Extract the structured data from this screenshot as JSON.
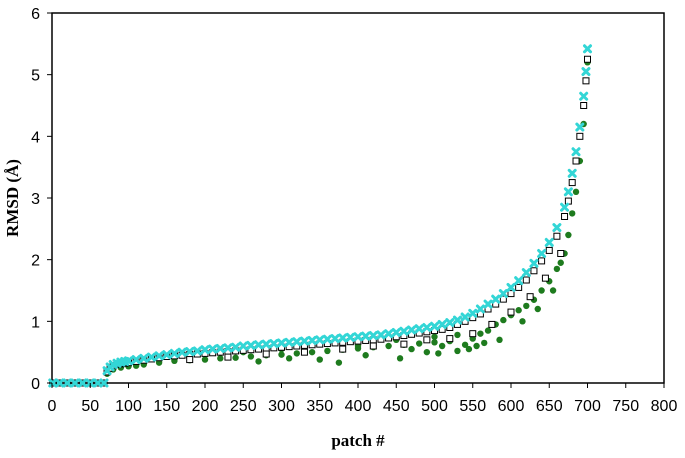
{
  "chart_data": {
    "type": "scatter",
    "title": "",
    "xlabel": "patch #",
    "ylabel": "RMSD (Å)",
    "xlim": [
      0,
      800
    ],
    "ylim": [
      0,
      6
    ],
    "xticks": [
      "0",
      "50",
      "100",
      "150",
      "200",
      "250",
      "300",
      "350",
      "400",
      "450",
      "500",
      "550",
      "600",
      "650",
      "700",
      "750",
      "800"
    ],
    "yticks": [
      "0",
      "1",
      "2",
      "3",
      "4",
      "5",
      "6"
    ],
    "grid": false,
    "legend": "none",
    "series": [
      {
        "marker": "square-open",
        "color": "#000000",
        "points": [
          [
            1,
            0
          ],
          [
            10,
            0
          ],
          [
            20,
            0
          ],
          [
            30,
            0
          ],
          [
            40,
            0
          ],
          [
            50,
            0
          ],
          [
            60,
            0
          ],
          [
            68,
            0
          ],
          [
            72,
            0.18
          ],
          [
            76,
            0.24
          ],
          [
            80,
            0.28
          ],
          [
            85,
            0.3
          ],
          [
            90,
            0.31
          ],
          [
            95,
            0.32
          ],
          [
            100,
            0.33
          ],
          [
            110,
            0.35
          ],
          [
            120,
            0.37
          ],
          [
            130,
            0.39
          ],
          [
            140,
            0.41
          ],
          [
            150,
            0.43
          ],
          [
            160,
            0.44
          ],
          [
            170,
            0.45
          ],
          [
            180,
            0.46
          ],
          [
            190,
            0.47
          ],
          [
            200,
            0.48
          ],
          [
            210,
            0.49
          ],
          [
            220,
            0.5
          ],
          [
            230,
            0.51
          ],
          [
            240,
            0.52
          ],
          [
            250,
            0.53
          ],
          [
            260,
            0.54
          ],
          [
            270,
            0.55
          ],
          [
            280,
            0.56
          ],
          [
            290,
            0.57
          ],
          [
            300,
            0.58
          ],
          [
            310,
            0.59
          ],
          [
            320,
            0.6
          ],
          [
            330,
            0.61
          ],
          [
            340,
            0.62
          ],
          [
            350,
            0.63
          ],
          [
            360,
            0.64
          ],
          [
            370,
            0.65
          ],
          [
            380,
            0.66
          ],
          [
            390,
            0.67
          ],
          [
            400,
            0.68
          ],
          [
            410,
            0.69
          ],
          [
            420,
            0.7
          ],
          [
            430,
            0.71
          ],
          [
            440,
            0.73
          ],
          [
            450,
            0.75
          ],
          [
            460,
            0.77
          ],
          [
            470,
            0.79
          ],
          [
            480,
            0.81
          ],
          [
            490,
            0.83
          ],
          [
            500,
            0.85
          ],
          [
            510,
            0.87
          ],
          [
            520,
            0.9
          ],
          [
            530,
            0.95
          ],
          [
            540,
            1.0
          ],
          [
            550,
            1.06
          ],
          [
            560,
            1.12
          ],
          [
            570,
            1.2
          ],
          [
            580,
            1.28
          ],
          [
            590,
            1.36
          ],
          [
            600,
            1.45
          ],
          [
            610,
            1.55
          ],
          [
            620,
            1.67
          ],
          [
            630,
            1.82
          ],
          [
            640,
            1.98
          ],
          [
            650,
            2.15
          ],
          [
            660,
            2.38
          ],
          [
            670,
            2.7
          ],
          [
            675,
            2.95
          ],
          [
            680,
            3.25
          ],
          [
            685,
            3.6
          ],
          [
            690,
            4.0
          ],
          [
            695,
            4.5
          ],
          [
            698,
            4.9
          ],
          [
            700,
            5.25
          ],
          [
            180,
            0.38
          ],
          [
            230,
            0.42
          ],
          [
            280,
            0.47
          ],
          [
            330,
            0.5
          ],
          [
            380,
            0.55
          ],
          [
            420,
            0.6
          ],
          [
            460,
            0.63
          ],
          [
            490,
            0.7
          ],
          [
            520,
            0.72
          ],
          [
            550,
            0.8
          ],
          [
            575,
            0.95
          ],
          [
            600,
            1.15
          ],
          [
            625,
            1.4
          ],
          [
            645,
            1.7
          ],
          [
            665,
            2.1
          ]
        ]
      },
      {
        "marker": "circle-filled",
        "color": "#1e7b1e",
        "points": [
          [
            72,
            0.15
          ],
          [
            80,
            0.22
          ],
          [
            90,
            0.25
          ],
          [
            100,
            0.27
          ],
          [
            110,
            0.28
          ],
          [
            120,
            0.3
          ],
          [
            140,
            0.33
          ],
          [
            160,
            0.36
          ],
          [
            180,
            0.37
          ],
          [
            200,
            0.38
          ],
          [
            220,
            0.4
          ],
          [
            240,
            0.41
          ],
          [
            260,
            0.43
          ],
          [
            270,
            0.35
          ],
          [
            280,
            0.45
          ],
          [
            300,
            0.46
          ],
          [
            310,
            0.4
          ],
          [
            320,
            0.48
          ],
          [
            340,
            0.5
          ],
          [
            350,
            0.38
          ],
          [
            360,
            0.52
          ],
          [
            375,
            0.33
          ],
          [
            380,
            0.54
          ],
          [
            400,
            0.56
          ],
          [
            410,
            0.45
          ],
          [
            420,
            0.58
          ],
          [
            440,
            0.6
          ],
          [
            455,
            0.4
          ],
          [
            460,
            0.62
          ],
          [
            470,
            0.55
          ],
          [
            480,
            0.64
          ],
          [
            490,
            0.5
          ],
          [
            500,
            0.66
          ],
          [
            505,
            0.48
          ],
          [
            510,
            0.6
          ],
          [
            520,
            0.68
          ],
          [
            530,
            0.52
          ],
          [
            540,
            0.62
          ],
          [
            545,
            0.55
          ],
          [
            550,
            0.72
          ],
          [
            555,
            0.6
          ],
          [
            560,
            0.8
          ],
          [
            565,
            0.65
          ],
          [
            570,
            0.85
          ],
          [
            580,
            0.95
          ],
          [
            585,
            0.7
          ],
          [
            590,
            1.02
          ],
          [
            600,
            1.1
          ],
          [
            610,
            1.18
          ],
          [
            615,
            1.0
          ],
          [
            620,
            1.25
          ],
          [
            630,
            1.35
          ],
          [
            635,
            1.2
          ],
          [
            640,
            1.5
          ],
          [
            650,
            1.65
          ],
          [
            655,
            1.5
          ],
          [
            660,
            1.85
          ],
          [
            665,
            1.95
          ],
          [
            670,
            2.1
          ],
          [
            675,
            2.4
          ],
          [
            680,
            2.75
          ],
          [
            685,
            3.1
          ],
          [
            690,
            3.6
          ],
          [
            695,
            4.2
          ],
          [
            700,
            5.2
          ],
          [
            250,
            0.5
          ],
          [
            300,
            0.55
          ],
          [
            400,
            0.6
          ],
          [
            450,
            0.7
          ],
          [
            500,
            0.75
          ],
          [
            530,
            0.78
          ]
        ]
      },
      {
        "marker": "x-cross",
        "color": "#33d6d6",
        "points": [
          [
            1,
            0
          ],
          [
            10,
            0
          ],
          [
            20,
            0
          ],
          [
            30,
            0
          ],
          [
            40,
            0
          ],
          [
            50,
            0
          ],
          [
            60,
            0
          ],
          [
            68,
            0
          ],
          [
            72,
            0.2
          ],
          [
            76,
            0.26
          ],
          [
            80,
            0.3
          ],
          [
            85,
            0.32
          ],
          [
            90,
            0.34
          ],
          [
            95,
            0.35
          ],
          [
            100,
            0.36
          ],
          [
            110,
            0.38
          ],
          [
            120,
            0.4
          ],
          [
            130,
            0.42
          ],
          [
            140,
            0.44
          ],
          [
            150,
            0.46
          ],
          [
            160,
            0.48
          ],
          [
            170,
            0.5
          ],
          [
            180,
            0.51
          ],
          [
            190,
            0.52
          ],
          [
            200,
            0.54
          ],
          [
            210,
            0.55
          ],
          [
            220,
            0.56
          ],
          [
            230,
            0.57
          ],
          [
            240,
            0.58
          ],
          [
            250,
            0.6
          ],
          [
            260,
            0.61
          ],
          [
            270,
            0.62
          ],
          [
            280,
            0.63
          ],
          [
            290,
            0.64
          ],
          [
            300,
            0.65
          ],
          [
            310,
            0.66
          ],
          [
            320,
            0.67
          ],
          [
            330,
            0.68
          ],
          [
            340,
            0.69
          ],
          [
            350,
            0.7
          ],
          [
            360,
            0.71
          ],
          [
            370,
            0.72
          ],
          [
            380,
            0.73
          ],
          [
            390,
            0.74
          ],
          [
            400,
            0.75
          ],
          [
            410,
            0.76
          ],
          [
            420,
            0.77
          ],
          [
            430,
            0.78
          ],
          [
            440,
            0.8
          ],
          [
            450,
            0.82
          ],
          [
            460,
            0.84
          ],
          [
            470,
            0.86
          ],
          [
            480,
            0.88
          ],
          [
            490,
            0.9
          ],
          [
            500,
            0.92
          ],
          [
            510,
            0.95
          ],
          [
            520,
            0.98
          ],
          [
            530,
            1.02
          ],
          [
            540,
            1.07
          ],
          [
            550,
            1.13
          ],
          [
            560,
            1.2
          ],
          [
            570,
            1.28
          ],
          [
            580,
            1.36
          ],
          [
            590,
            1.45
          ],
          [
            600,
            1.55
          ],
          [
            610,
            1.66
          ],
          [
            620,
            1.79
          ],
          [
            630,
            1.94
          ],
          [
            640,
            2.1
          ],
          [
            650,
            2.28
          ],
          [
            660,
            2.52
          ],
          [
            670,
            2.85
          ],
          [
            675,
            3.1
          ],
          [
            680,
            3.4
          ],
          [
            685,
            3.75
          ],
          [
            690,
            4.15
          ],
          [
            695,
            4.65
          ],
          [
            698,
            5.05
          ],
          [
            700,
            5.42
          ]
        ]
      }
    ]
  }
}
